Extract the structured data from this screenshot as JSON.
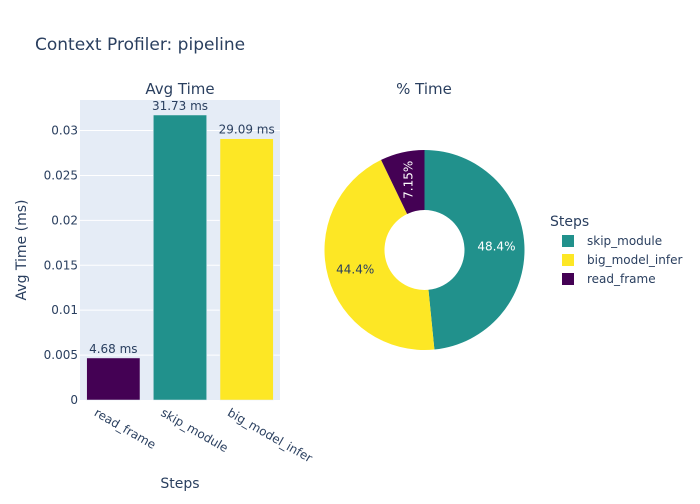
{
  "title": "Context Profiler: pipeline",
  "chart_data": [
    {
      "type": "bar",
      "subplot_title": "Avg Time",
      "categories": [
        "read_frame",
        "skip_module",
        "big_model_infer"
      ],
      "values": [
        0.00468,
        0.03173,
        0.02909
      ],
      "data_labels": [
        "4.68 ms",
        "31.73 ms",
        "29.09 ms"
      ],
      "colors": [
        "#440154",
        "#21918c",
        "#fde725"
      ],
      "xlabel": "Steps",
      "ylabel": "Avg Time (ms)",
      "ylim": [
        0,
        0.0334
      ],
      "yticks": [
        0,
        0.005,
        0.01,
        0.015,
        0.02,
        0.025,
        0.03
      ],
      "ytick_labels": [
        "0",
        "0.005",
        "0.01",
        "0.015",
        "0.02",
        "0.025",
        "0.03"
      ],
      "grid": true,
      "plot_background": "#e5ecf6"
    },
    {
      "type": "pie",
      "subplot_title": "% Time",
      "hole": true,
      "labels": [
        "skip_module",
        "big_model_infer",
        "read_frame"
      ],
      "values": [
        48.4,
        44.4,
        7.15
      ],
      "data_labels": [
        "48.4%",
        "44.4%",
        "7.15%"
      ],
      "colors": [
        "#21918c",
        "#fde725",
        "#440154"
      ]
    }
  ],
  "legend": {
    "title": "Steps",
    "position": "right",
    "items": [
      {
        "label": "skip_module",
        "color": "#21918c"
      },
      {
        "label": "big_model_infer",
        "color": "#fde725"
      },
      {
        "label": "read_frame",
        "color": "#440154"
      }
    ]
  }
}
